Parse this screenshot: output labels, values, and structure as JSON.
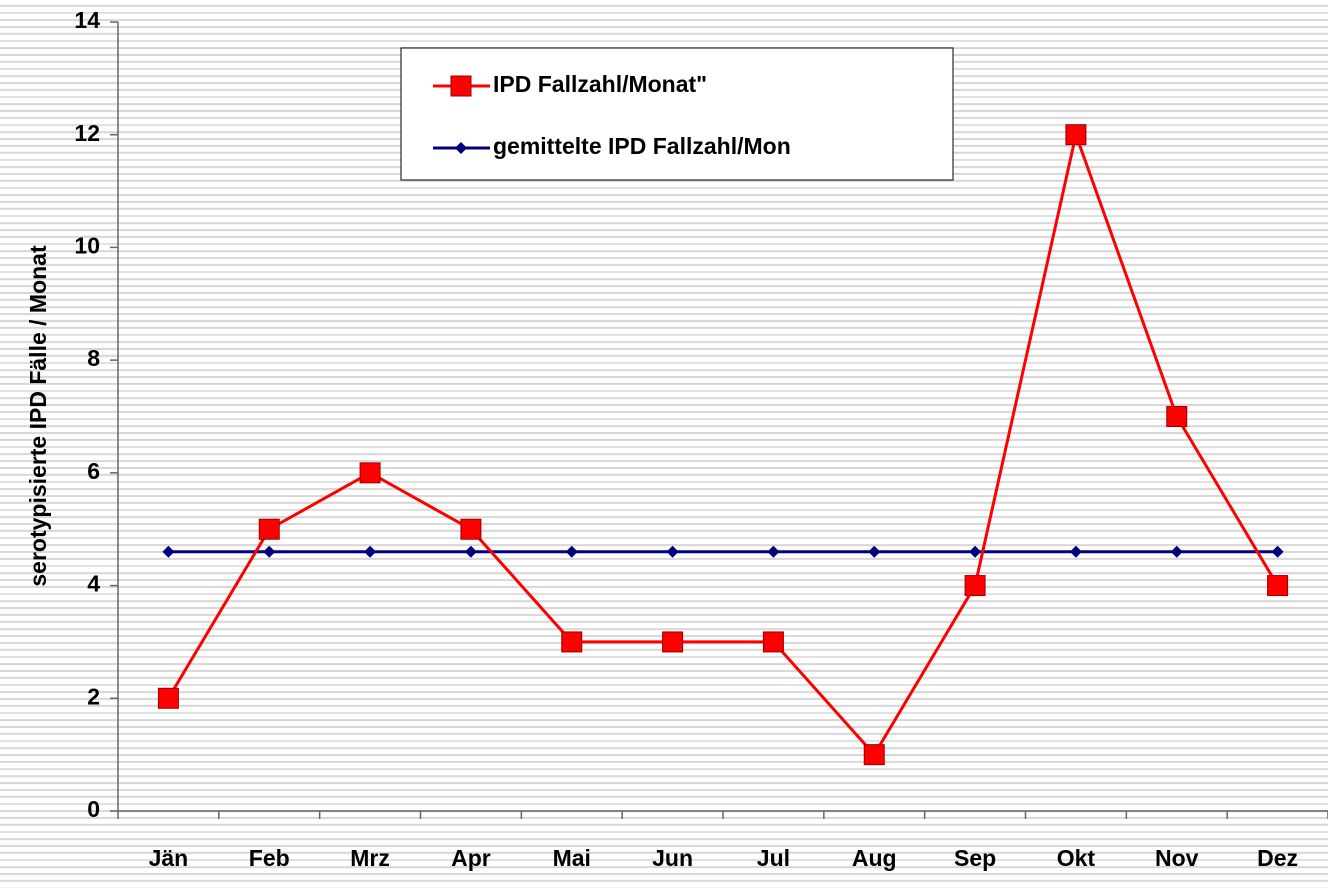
{
  "chart_data": {
    "type": "line",
    "y_label": "serotypisierte IPD Fälle / Monat",
    "categories": [
      "Jän",
      "Feb",
      "Mrz",
      "Apr",
      "Mai",
      "Jun",
      "Jul",
      "Aug",
      "Sep",
      "Okt",
      "Nov",
      "Dez"
    ],
    "series": [
      {
        "name": "IPD Fallzahl/Monat\"",
        "color": "#ff0000",
        "values": [
          2,
          5,
          6,
          5,
          3,
          3,
          3,
          1,
          4,
          12,
          7,
          4
        ]
      },
      {
        "name": "gemittelte IPD Fallzahl/Mon",
        "color": "#000080",
        "values": [
          4.6,
          4.6,
          4.6,
          4.6,
          4.6,
          4.6,
          4.6,
          4.6,
          4.6,
          4.6,
          4.6,
          4.6
        ]
      }
    ],
    "ylim": [
      0,
      14
    ],
    "yticks": [
      0,
      2,
      4,
      6,
      8,
      10,
      12,
      14
    ],
    "grid": false
  }
}
